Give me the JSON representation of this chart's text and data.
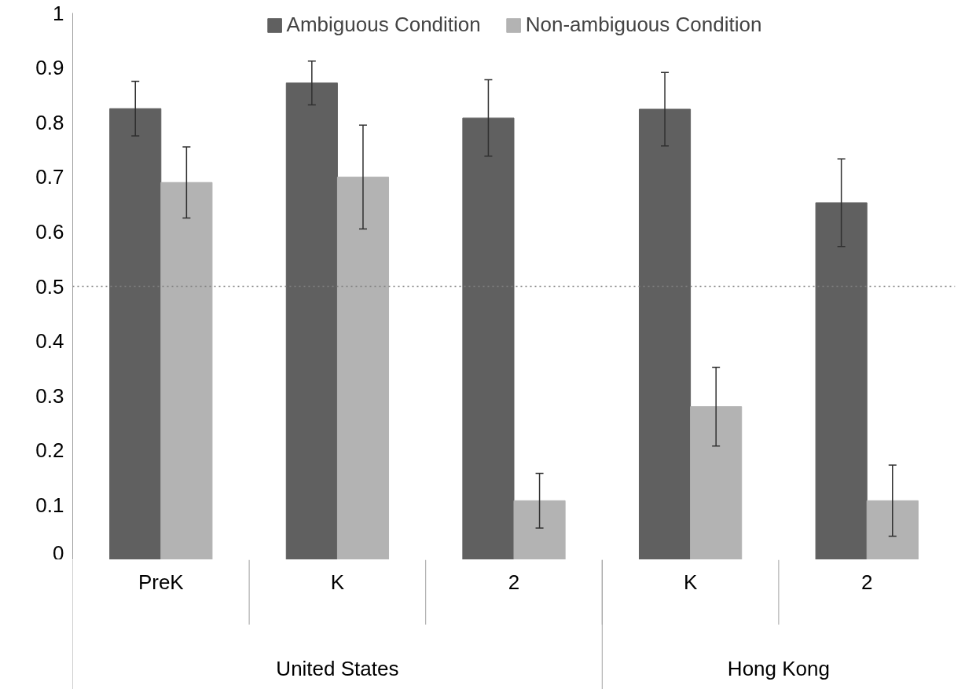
{
  "chart_data": {
    "type": "bar",
    "categories": [
      "PreK",
      "K",
      "2",
      "K",
      "2"
    ],
    "series": [
      {
        "name": "Ambiguous Condition",
        "color": "#606060",
        "values": [
          0.825,
          0.872,
          0.808,
          0.824,
          0.653
        ],
        "errors": [
          0.05,
          0.04,
          0.07,
          0.067,
          0.08
        ]
      },
      {
        "name": "Non-ambiguous Condition",
        "color": "#b3b3b3",
        "values": [
          0.69,
          0.7,
          0.108,
          0.28,
          0.108
        ],
        "errors": [
          0.065,
          0.095,
          0.05,
          0.072,
          0.065
        ]
      }
    ],
    "annotations": [
      "United States",
      "Hong Kong"
    ],
    "ylim": [
      0,
      1
    ],
    "yticks": [
      0,
      0.1,
      0.2,
      0.3,
      0.4,
      0.5,
      0.6,
      0.7,
      0.8,
      0.9,
      1
    ],
    "ref_lines": [
      {
        "axis": "y",
        "value": 0.5,
        "color": "#808080",
        "line_style": "dotted"
      }
    ],
    "grid": false,
    "legend": "top"
  }
}
